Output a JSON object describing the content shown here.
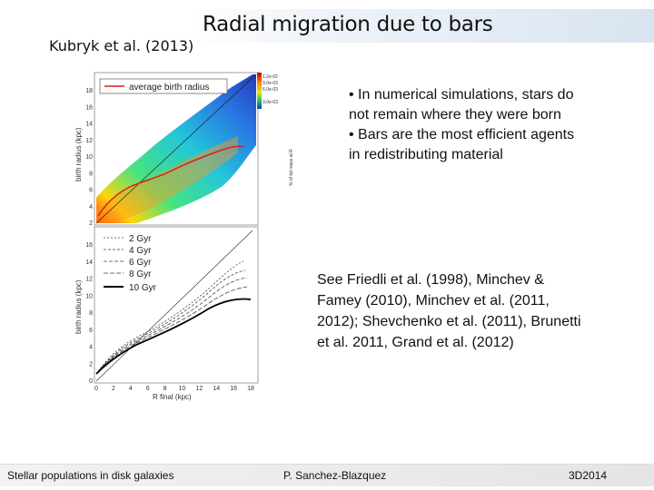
{
  "slide": {
    "title": "Radial migration due to bars",
    "citation": "Kubryk et al. (2013)",
    "bullets": [
      "• In numerical simulations, stars do not remain where they were born",
      "• Bars are the most efficient agents in redistributing material"
    ],
    "references": "See Friedli et al. (1998), Minchev & Famey (2010), Minchev et al. (2011, 2012); Shevchenko et al. (2011), Brunetti et al. 2011, Grand et al. (2012)",
    "footer": {
      "left": "Stellar populations in disk galaxies",
      "center": "P. Sanchez-Blazquez",
      "right": "3D2014"
    }
  },
  "figure": {
    "top_panel": {
      "ylabel": "birth radius (kpc)",
      "yticks": [
        "18",
        "16",
        "14",
        "12",
        "10",
        "8",
        "6",
        "4",
        "2"
      ],
      "legend": "average birth radius",
      "colorbar_ticks": [
        "1.2e-02",
        "9.0e-03",
        "6.0e-03",
        "3.0e-03"
      ],
      "colorbar_label": "% of tot mass at R"
    },
    "bottom_panel": {
      "ylabel": "birth radius (kpc)",
      "xlabel": "R final (kpc)",
      "yticks": [
        "16",
        "14",
        "12",
        "10",
        "8",
        "6",
        "4",
        "2",
        "0"
      ],
      "xticks": [
        "0",
        "2",
        "4",
        "6",
        "8",
        "10",
        "12",
        "14",
        "16",
        "18"
      ],
      "legend": [
        "2 Gyr",
        "4 Gyr",
        "6 Gyr",
        "8 Gyr",
        "10 Gyr"
      ]
    }
  }
}
